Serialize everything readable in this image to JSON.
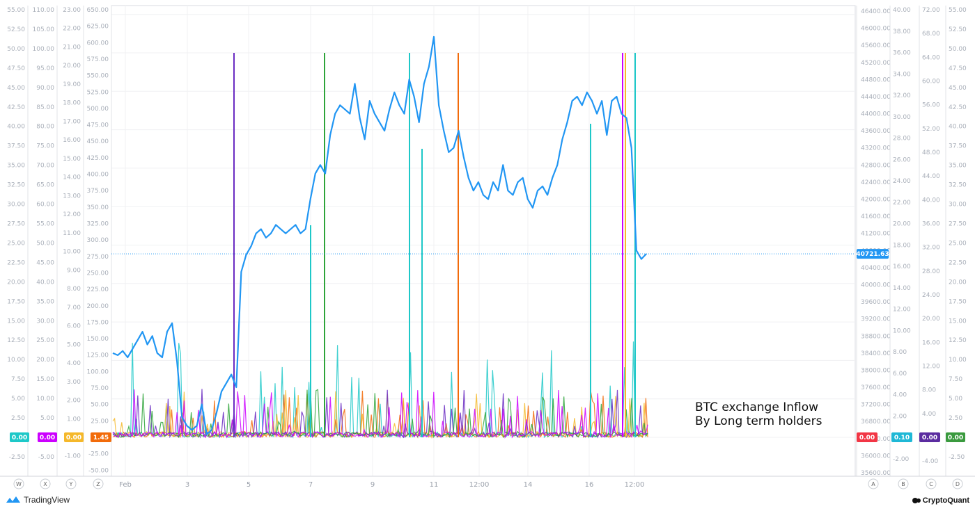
{
  "annotation": [
    "BTC exchange Inflow",
    "By Long term holders"
  ],
  "branding": {
    "left": "TradingView",
    "right": "CryptoQuant"
  },
  "colors": {
    "btc_price": "#2196f3",
    "teal": "#1ec8c8",
    "magenta": "#cc00ff",
    "yellow": "#f5b82a",
    "orange": "#f26b0a",
    "green": "#2ea43a",
    "purple": "#6a2bc2",
    "price_badge": "#2196f3",
    "red_badge": "#f23645",
    "a_badge": "#1fb8d6",
    "c_badge": "#5b2ca0",
    "d_badge": "#3a9a3e"
  },
  "chart_data": {
    "type": "line",
    "title": "",
    "x_ticks": [
      "Feb",
      "3",
      "5",
      "7",
      "9",
      "11",
      "12:00",
      "14",
      "16",
      "12:00"
    ],
    "price_series": {
      "name": "",
      "current": "40721.63",
      "values": [
        38400,
        38350,
        38450,
        38300,
        38500,
        38700,
        38900,
        38600,
        38800,
        38400,
        38300,
        38900,
        39100,
        38200,
        36900,
        36700,
        36600,
        36700,
        37200,
        36500,
        36600,
        37000,
        37500,
        37700,
        37900,
        37600,
        40300,
        40700,
        40900,
        41200,
        41300,
        41100,
        41200,
        41400,
        41300,
        41200,
        41300,
        41400,
        41200,
        41300,
        42000,
        42600,
        42800,
        42600,
        43500,
        44000,
        44200,
        44100,
        44000,
        44700,
        43900,
        43400,
        44300,
        44000,
        43800,
        43600,
        44100,
        44500,
        44200,
        44000,
        44800,
        44400,
        43800,
        44700,
        45100,
        45800,
        44200,
        43600,
        43100,
        43200,
        43600,
        43000,
        42500,
        42200,
        42400,
        42100,
        42000,
        42400,
        42200,
        42800,
        42200,
        42100,
        42400,
        42500,
        42000,
        41800,
        42200,
        42300,
        42100,
        42500,
        42800,
        43400,
        43800,
        44300,
        44400,
        44200,
        44500,
        44300,
        44000,
        44300,
        43500,
        44300,
        44400,
        44000,
        43900,
        43200,
        40800,
        40600,
        40721.63
      ],
      "axis_ticks": [
        "35600.00",
        "36000.00",
        "36400.00",
        "36800.00",
        "37200.00",
        "37600.00",
        "38000.00",
        "38400.00",
        "38800.00",
        "39200.00",
        "39600.00",
        "40000.00",
        "40400.00",
        "40800.00",
        "41200.00",
        "41600.00",
        "42000.00",
        "42400.00",
        "42800.00",
        "43200.00",
        "43600.00",
        "44000.00",
        "44400.00",
        "44800.00",
        "45200.00",
        "45600.00",
        "46000.00",
        "46400.00"
      ]
    },
    "spike_series": [
      {
        "name": "Z",
        "peaks": [
          0.5,
          0.1,
          1.2,
          0.3,
          2.1,
          0.4,
          1.8,
          0.2,
          9.8,
          0.6,
          1.5,
          20.9,
          0.8,
          1.2,
          6.8,
          0.3,
          1.0,
          0.5,
          3.5,
          0.7,
          1.2,
          0.4
        ]
      },
      {
        "name": "W",
        "peaks": [
          1.2,
          3.1,
          5.2,
          8.8,
          2.1,
          4.5,
          5.5,
          2.8,
          11.5,
          1.8,
          3.5,
          6.9,
          4.1,
          2.2,
          7.8,
          17.0,
          4.2,
          3.3,
          23.5,
          2.8,
          1.1,
          0.9
        ]
      }
    ],
    "axes": {
      "W": {
        "ticks": [
          "-2.50",
          "0.00",
          "2.50",
          "5.00",
          "7.50",
          "10.00",
          "12.50",
          "15.00",
          "17.50",
          "20.00",
          "22.50",
          "25.00",
          "27.50",
          "30.00",
          "32.50",
          "35.00",
          "37.50",
          "40.00",
          "42.50",
          "45.00",
          "47.50",
          "50.00",
          "52.50",
          "55.00"
        ],
        "badge": "0.00"
      },
      "X": {
        "ticks": [
          "-5.00",
          "0.00",
          "5.00",
          "10.00",
          "15.00",
          "20.00",
          "25.00",
          "30.00",
          "35.00",
          "40.00",
          "45.00",
          "50.00",
          "55.00",
          "60.00",
          "65.00",
          "70.00",
          "75.00",
          "80.00",
          "85.00",
          "90.00",
          "95.00",
          "100.00",
          "105.00",
          "110.00"
        ],
        "badge": "0.00"
      },
      "Y": {
        "ticks": [
          "-1.00",
          "0.00",
          "1.00",
          "2.00",
          "3.00",
          "4.00",
          "5.00",
          "6.00",
          "7.00",
          "8.00",
          "9.00",
          "10.00",
          "11.00",
          "12.00",
          "13.00",
          "14.00",
          "15.00",
          "16.00",
          "17.00",
          "18.00",
          "19.00",
          "20.00",
          "21.00",
          "22.00",
          "23.00"
        ],
        "badge": "0.00"
      },
      "Z": {
        "ticks": [
          "-50.00",
          "-25.00",
          "0.00",
          "25.00",
          "50.00",
          "75.00",
          "100.00",
          "125.00",
          "150.00",
          "175.00",
          "200.00",
          "225.00",
          "250.00",
          "275.00",
          "300.00",
          "325.00",
          "350.00",
          "375.00",
          "400.00",
          "425.00",
          "450.00",
          "475.00",
          "500.00",
          "525.00",
          "550.00",
          "575.00",
          "600.00",
          "625.00",
          "650.00"
        ],
        "badge": "1.45"
      },
      "A": {
        "ticks": [
          "-2.00",
          "0.00",
          "2.00",
          "4.00",
          "6.00",
          "8.00",
          "10.00",
          "12.00",
          "14.00",
          "16.00",
          "18.00",
          "20.00",
          "22.00",
          "24.00",
          "26.00",
          "28.00",
          "30.00",
          "32.00",
          "34.00",
          "36.00",
          "38.00",
          "40.00"
        ],
        "badge": "0.00"
      },
      "B": {
        "ticks": [
          "-2.00",
          "0.00",
          "2.00",
          "4.00",
          "6.00",
          "8.00",
          "10.00",
          "12.00",
          "14.00",
          "16.00",
          "18.00",
          "20.00",
          "22.00",
          "24.00",
          "26.00",
          "28.00",
          "30.00",
          "32.00",
          "34.00",
          "36.00",
          "38.00",
          "40.00"
        ],
        "badge": "0.10"
      },
      "C": {
        "ticks": [
          "-4.00",
          "0.00",
          "4.00",
          "8.00",
          "12.00",
          "16.00",
          "20.00",
          "24.00",
          "28.00",
          "32.00",
          "36.00",
          "40.00",
          "44.00",
          "48.00",
          "52.00",
          "56.00",
          "60.00",
          "64.00",
          "68.00",
          "72.00"
        ],
        "badge": "0.00"
      },
      "D": {
        "ticks": [
          "-2.50",
          "0.00",
          "2.50",
          "5.00",
          "7.50",
          "10.00",
          "12.50",
          "15.00",
          "17.50",
          "20.00",
          "22.50",
          "25.00",
          "27.50",
          "30.00",
          "32.50",
          "35.00",
          "37.50",
          "40.00",
          "42.50",
          "45.00",
          "47.50",
          "50.00",
          "52.50",
          "55.00"
        ],
        "badge": "0.00"
      }
    },
    "axis_letters": [
      "W",
      "X",
      "Y",
      "Z",
      "A",
      "B",
      "C",
      "D"
    ],
    "grid": true
  }
}
